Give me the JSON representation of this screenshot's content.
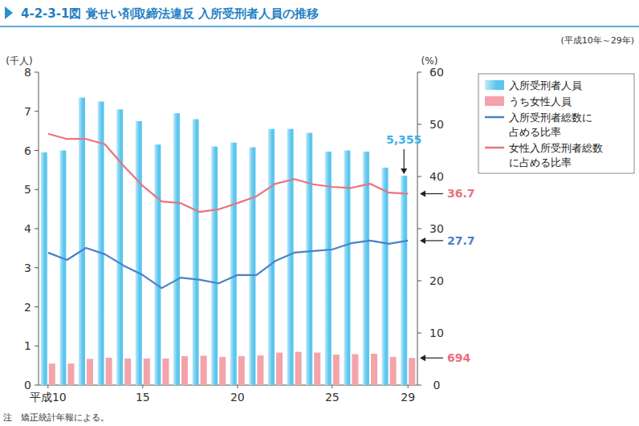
{
  "chart_data": {
    "type": "bar",
    "title": "4-2-3-1図 覚せい剤取締法違反 入所受刑者人員の推移",
    "subtitle": "(平成10年～29年)",
    "y_label": "(千人)",
    "y2_label": "(%)",
    "note": "注　矯正統計年報による。",
    "categories": [
      "平成10",
      null,
      null,
      null,
      null,
      "15",
      null,
      null,
      null,
      null,
      "20",
      null,
      null,
      null,
      null,
      "25",
      null,
      null,
      null,
      "29"
    ],
    "ylim": [
      0,
      8
    ],
    "yticks": [
      0,
      1,
      2,
      3,
      4,
      5,
      6,
      7,
      8
    ],
    "y2lim": [
      0,
      60
    ],
    "y2ticks": [
      0,
      10,
      20,
      30,
      40,
      50,
      60
    ],
    "legend": "right",
    "series": [
      {
        "name": "入所受刑者人員",
        "type": "bar",
        "color": "#5cc6ee",
        "values": [
          5.95,
          6.0,
          7.35,
          7.25,
          7.05,
          6.75,
          6.15,
          6.95,
          6.8,
          6.1,
          6.2,
          6.08,
          6.55,
          6.55,
          6.45,
          5.97,
          6.0,
          5.97,
          5.56,
          5.355
        ]
      },
      {
        "name": "うち女性人員",
        "type": "bar",
        "color": "#f4a3ab",
        "values": [
          0.55,
          0.55,
          0.67,
          0.7,
          0.68,
          0.68,
          0.68,
          0.74,
          0.75,
          0.72,
          0.74,
          0.76,
          0.83,
          0.85,
          0.83,
          0.78,
          0.79,
          0.8,
          0.72,
          0.694
        ]
      },
      {
        "name": "入所受刑者総数に\n占める比率",
        "type": "line",
        "axis": "y2",
        "color": "#4a82c6",
        "values": [
          25.4,
          24.0,
          26.3,
          25.1,
          22.9,
          21.1,
          18.6,
          20.6,
          20.2,
          19.5,
          21.1,
          21.1,
          23.8,
          25.4,
          25.7,
          26.0,
          27.2,
          27.7,
          27.1,
          27.7
        ]
      },
      {
        "name": "女性入所受刑者総数\nに占める比率",
        "type": "line",
        "axis": "y2",
        "color": "#ea737d",
        "values": [
          48.2,
          47.2,
          47.2,
          46.2,
          42.0,
          38.2,
          35.2,
          34.9,
          33.2,
          33.7,
          34.9,
          36.2,
          38.6,
          39.5,
          38.5,
          38.0,
          37.8,
          38.6,
          36.9,
          36.7
        ]
      }
    ],
    "annotations": [
      {
        "text": "5,355",
        "series": "入所受刑者人員"
      },
      {
        "text": "36.7",
        "series": "女性入所受刑者総数\nに占める比率"
      },
      {
        "text": "27.7",
        "series": "入所受刑者総数に\n占める比率"
      },
      {
        "text": "694",
        "series": "うち女性人員"
      }
    ]
  }
}
